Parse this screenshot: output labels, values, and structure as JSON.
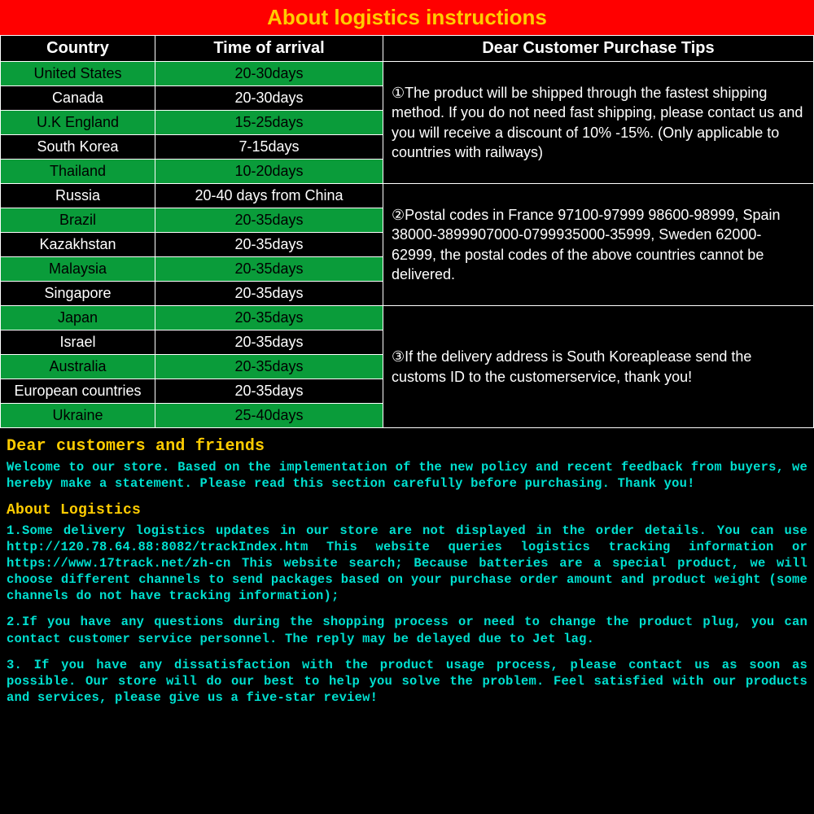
{
  "title": "About logistics instructions",
  "colors": {
    "title_bg": "#ff0000",
    "title_text": "#ffcc00",
    "row_green": "#0a9c3a",
    "row_black": "#000000",
    "border": "#ffffff",
    "bottom_text": "#00e0d0",
    "bottom_heading": "#ffcc00"
  },
  "table": {
    "headers": [
      "Country",
      "Time of arrival",
      "Dear Customer Purchase Tips"
    ],
    "rows": [
      {
        "country": "United States",
        "time": "20-30days",
        "color": "green"
      },
      {
        "country": "Canada",
        "time": "20-30days",
        "color": "black"
      },
      {
        "country": "U.K England",
        "time": "15-25days",
        "color": "green"
      },
      {
        "country": "South Korea",
        "time": "7-15days",
        "color": "black"
      },
      {
        "country": "Thailand",
        "time": "10-20days",
        "color": "green"
      },
      {
        "country": "Russia",
        "time": "20-40 days from China",
        "color": "black"
      },
      {
        "country": "Brazil",
        "time": "20-35days",
        "color": "green"
      },
      {
        "country": "Kazakhstan",
        "time": "20-35days",
        "color": "black"
      },
      {
        "country": "Malaysia",
        "time": "20-35days",
        "color": "green"
      },
      {
        "country": "Singapore",
        "time": "20-35days",
        "color": "black"
      },
      {
        "country": "Japan",
        "time": "20-35days",
        "color": "green"
      },
      {
        "country": "Israel",
        "time": "20-35days",
        "color": "black"
      },
      {
        "country": "Australia",
        "time": "20-35days",
        "color": "green"
      },
      {
        "country": "European countries",
        "time": "20-35days",
        "color": "black"
      },
      {
        "country": "Ukraine",
        "time": "25-40days",
        "color": "green"
      }
    ],
    "tips": [
      {
        "span": 5,
        "text": "①The product will be shipped through the fastest shipping method. If you do not need fast shipping, please contact us and you will receive a discount of 10% -15%. (Only applicable to countries with railways)"
      },
      {
        "span": 5,
        "text": "②Postal codes in France 97100-97999 98600-98999, Spain 38000-3899907000-0799935000-35999, Sweden 62000-62999, the postal codes of the above countries cannot be delivered."
      },
      {
        "span": 5,
        "text": "③If the delivery address is South Koreaplease send the customs ID to the customerservice, thank you!"
      }
    ]
  },
  "bottom": {
    "heading": "Dear customers and friends",
    "intro": "Welcome to our store. Based on the implementation of the new policy and recent feedback from buyers, we hereby make a statement. Please read this section carefully before purchasing. Thank you!",
    "subheading": "About Logistics",
    "p1": "1.Some delivery logistics updates in our store are not displayed in the order details. You can use http://120.78.64.88:8082/trackIndex.htm This website queries logistics tracking information or https://www.17track.net/zh-cn This website search; Because batteries are a special product, we will choose different channels to send packages based on your purchase order amount and product weight (some channels do not have tracking information);",
    "p2": "2.If you have any questions during the shopping process or need to change the product plug, you can contact customer service personnel. The reply may be delayed due to Jet lag.",
    "p3": "3. If you have any dissatisfaction with the product usage process, please contact us as soon as possible. Our store will do our best to help you solve the problem. Feel satisfied with our products and services, please give us a five-star review!"
  }
}
